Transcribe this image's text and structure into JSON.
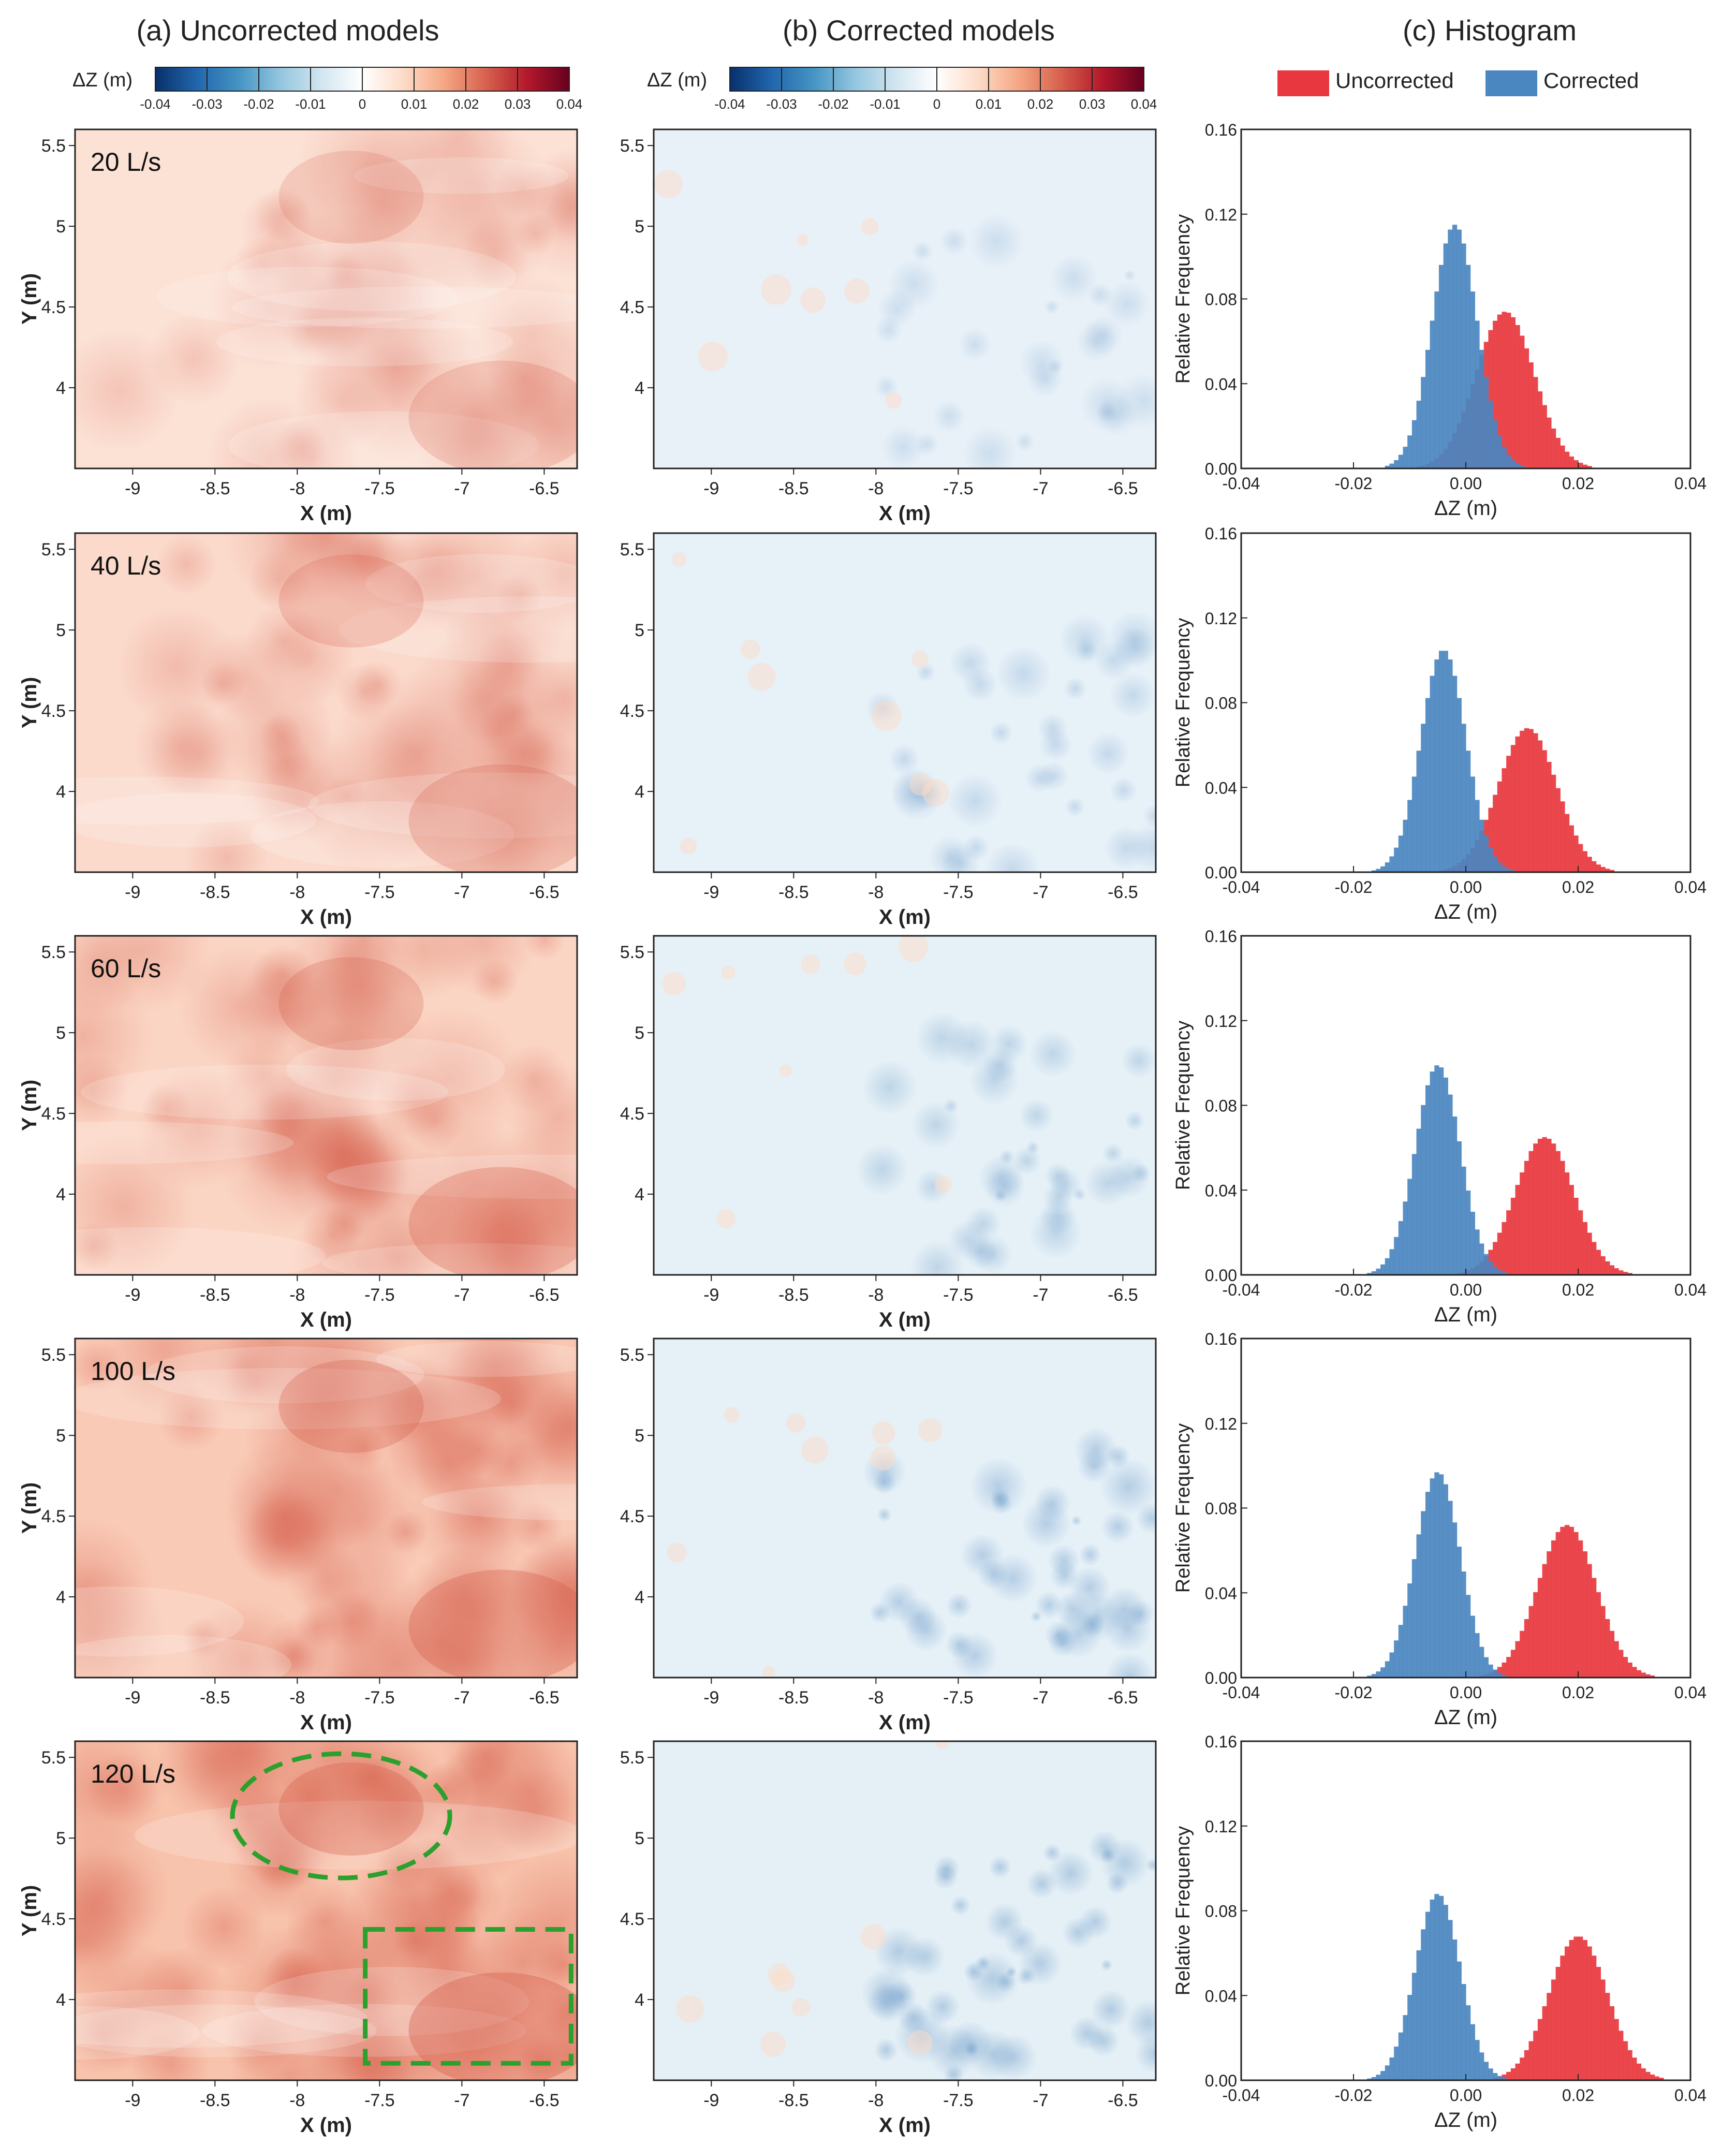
{
  "column_titles": [
    "(a) Uncorrected models",
    "(b) Corrected models",
    "(c) Histogram"
  ],
  "colorbar": {
    "label": "ΔZ (m)",
    "ticks": [
      "-0.04",
      "-0.03",
      "-0.02",
      "-0.01",
      "0",
      "0.01",
      "0.02",
      "0.03",
      "0.04"
    ],
    "colors": [
      "#08306b",
      "#2166ac",
      "#4393c3",
      "#92c5de",
      "#d1e5f0",
      "#ffffff",
      "#fddbc7",
      "#f4a582",
      "#d6604d",
      "#b2182b",
      "#67001f"
    ]
  },
  "legend": {
    "uncorrected": "Uncorrected",
    "corrected": "Corrected",
    "uncorrected_color": "#e8373e",
    "corrected_color": "#4a86c0"
  },
  "map_axes": {
    "xlabel": "X (m)",
    "ylabel": "Y (m)",
    "xticks": [
      "-9",
      "-8.5",
      "-8",
      "-7.5",
      "-7",
      "-6.5"
    ],
    "yticks": [
      "5.5",
      "5",
      "4.5",
      "4"
    ]
  },
  "hist_axes": {
    "xlabel": "ΔZ (m)",
    "ylabel": "Relative Frequency",
    "xticks": [
      "-0.04",
      "-0.02",
      "0.00",
      "0.02",
      "0.04"
    ],
    "yticks": [
      "0.00",
      "0.04",
      "0.08",
      "0.12",
      "0.16"
    ]
  },
  "rows": [
    {
      "flow": "20 L/s",
      "uncorr_intensity": 0.22,
      "corr_intensity": 0.1
    },
    {
      "flow": "40 L/s",
      "uncorr_intensity": 0.32,
      "corr_intensity": 0.14
    },
    {
      "flow": "60 L/s",
      "uncorr_intensity": 0.4,
      "corr_intensity": 0.17
    },
    {
      "flow": "100 L/s",
      "uncorr_intensity": 0.52,
      "corr_intensity": 0.22
    },
    {
      "flow": "120 L/s",
      "uncorr_intensity": 0.6,
      "corr_intensity": 0.24
    }
  ],
  "chart_data": {
    "type": "histogram",
    "title": "(c) Histogram",
    "xlabel": "ΔZ (m)",
    "ylabel": "Relative Frequency",
    "xlim": [
      -0.04,
      0.04
    ],
    "ylim": [
      0,
      0.16
    ],
    "panels": [
      {
        "flow": "20 L/s",
        "series": [
          {
            "name": "Uncorrected",
            "mean": 0.007,
            "peak": 0.074
          },
          {
            "name": "Corrected",
            "mean": -0.002,
            "peak": 0.115
          }
        ]
      },
      {
        "flow": "40 L/s",
        "series": [
          {
            "name": "Uncorrected",
            "mean": 0.011,
            "peak": 0.068
          },
          {
            "name": "Corrected",
            "mean": -0.004,
            "peak": 0.105
          }
        ]
      },
      {
        "flow": "60 L/s",
        "series": [
          {
            "name": "Uncorrected",
            "mean": 0.014,
            "peak": 0.065
          },
          {
            "name": "Corrected",
            "mean": -0.005,
            "peak": 0.099
          }
        ]
      },
      {
        "flow": "100 L/s",
        "series": [
          {
            "name": "Uncorrected",
            "mean": 0.018,
            "peak": 0.072
          },
          {
            "name": "Corrected",
            "mean": -0.005,
            "peak": 0.097
          }
        ]
      },
      {
        "flow": "120 L/s",
        "series": [
          {
            "name": "Uncorrected",
            "mean": 0.02,
            "peak": 0.068
          },
          {
            "name": "Corrected",
            "mean": -0.005,
            "peak": 0.088
          }
        ]
      }
    ]
  }
}
